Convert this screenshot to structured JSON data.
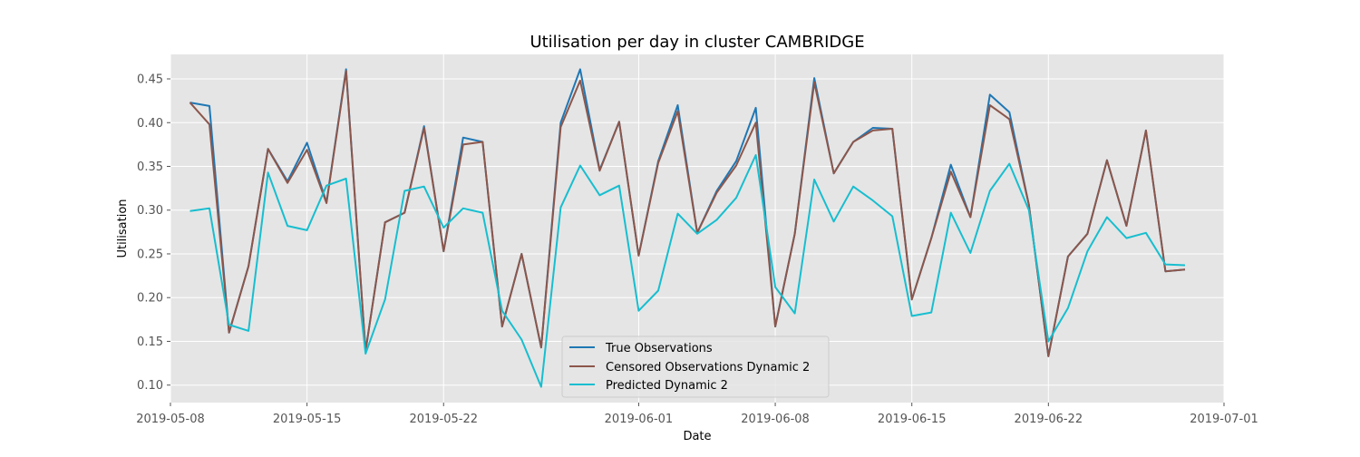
{
  "chart_data": {
    "type": "line",
    "title": "Utilisation per day in cluster CAMBRIDGE",
    "xlabel": "Date",
    "ylabel": "Utilisation",
    "x_start": "2019-05-09",
    "xlim": [
      "2019-05-08",
      "2019-07-01"
    ],
    "ylim": [
      0.08,
      0.478
    ],
    "x_ticks": [
      "2019-05-08",
      "2019-05-15",
      "2019-05-22",
      "2019-06-01",
      "2019-06-08",
      "2019-06-15",
      "2019-06-22",
      "2019-07-01"
    ],
    "y_ticks": [
      0.1,
      0.15,
      0.2,
      0.25,
      0.3,
      0.35,
      0.4,
      0.45
    ],
    "grid": true,
    "legend_position": "bottom-center",
    "series": [
      {
        "name": "True Observations",
        "color": "#1f77b4",
        "values": [
          0.423,
          0.419,
          0.16,
          0.236,
          0.37,
          0.333,
          0.377,
          0.309,
          0.461,
          0.139,
          0.286,
          0.297,
          0.396,
          0.253,
          0.383,
          0.378,
          0.167,
          0.25,
          0.143,
          0.4,
          0.461,
          0.346,
          0.401,
          0.248,
          0.356,
          0.42,
          0.274,
          0.322,
          0.356,
          0.417,
          0.167,
          0.273,
          0.451,
          0.342,
          0.378,
          0.394,
          0.393,
          0.198,
          0.268,
          0.352,
          0.292,
          0.432,
          0.412,
          0.306,
          0.133,
          0.247,
          0.273,
          0.357,
          0.282,
          0.391,
          0.23,
          0.232
        ]
      },
      {
        "name": "Censored Observations Dynamic 2",
        "color": "#8c564b",
        "values": [
          0.423,
          0.398,
          0.16,
          0.236,
          0.37,
          0.331,
          0.369,
          0.308,
          0.459,
          0.139,
          0.286,
          0.297,
          0.394,
          0.253,
          0.375,
          0.378,
          0.167,
          0.25,
          0.143,
          0.395,
          0.448,
          0.345,
          0.401,
          0.248,
          0.354,
          0.413,
          0.274,
          0.32,
          0.351,
          0.4,
          0.167,
          0.273,
          0.446,
          0.342,
          0.378,
          0.391,
          0.393,
          0.198,
          0.268,
          0.344,
          0.292,
          0.42,
          0.404,
          0.306,
          0.133,
          0.247,
          0.273,
          0.357,
          0.282,
          0.391,
          0.23,
          0.232
        ]
      },
      {
        "name": "Predicted Dynamic 2",
        "color": "#17becf",
        "values": [
          0.299,
          0.302,
          0.169,
          0.162,
          0.343,
          0.282,
          0.277,
          0.328,
          0.336,
          0.136,
          0.198,
          0.322,
          0.327,
          0.28,
          0.302,
          0.297,
          0.185,
          0.152,
          0.098,
          0.303,
          0.351,
          0.317,
          0.328,
          0.185,
          0.208,
          0.296,
          0.273,
          0.289,
          0.314,
          0.363,
          0.212,
          0.182,
          0.335,
          0.287,
          0.327,
          0.311,
          0.293,
          0.179,
          0.183,
          0.297,
          0.251,
          0.322,
          0.353,
          0.3,
          0.15,
          0.188,
          0.253,
          0.292,
          0.268,
          0.274,
          0.238,
          0.237
        ]
      }
    ]
  }
}
